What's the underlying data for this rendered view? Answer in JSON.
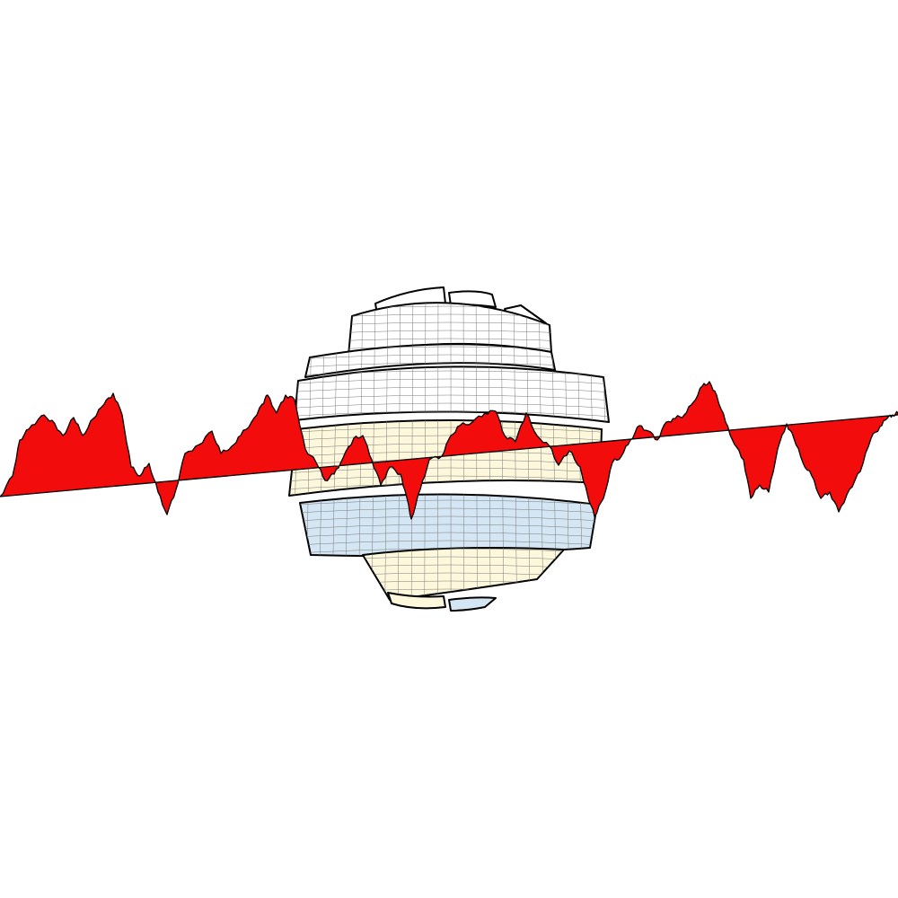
{
  "colors": {
    "background": "#ffffff",
    "stroke": "#000000",
    "wave_fill": "#f20c0c",
    "band_white": "#ffffff",
    "band_yellow": "#fdf8dc",
    "band_blue": "#d4e6f3",
    "grid": "#7a7a7a"
  },
  "sphere": {
    "bands": [
      {
        "name": "cap",
        "fill": "band_white"
      },
      {
        "name": "upper",
        "fill": "band_white"
      },
      {
        "name": "upper-wide",
        "fill": "band_white"
      },
      {
        "name": "middle",
        "fill": "band_yellow"
      },
      {
        "name": "lower-wide",
        "fill": "band_blue"
      },
      {
        "name": "lower",
        "fill": "band_yellow"
      },
      {
        "name": "bottom-cap",
        "fill": "band_blue"
      }
    ]
  }
}
